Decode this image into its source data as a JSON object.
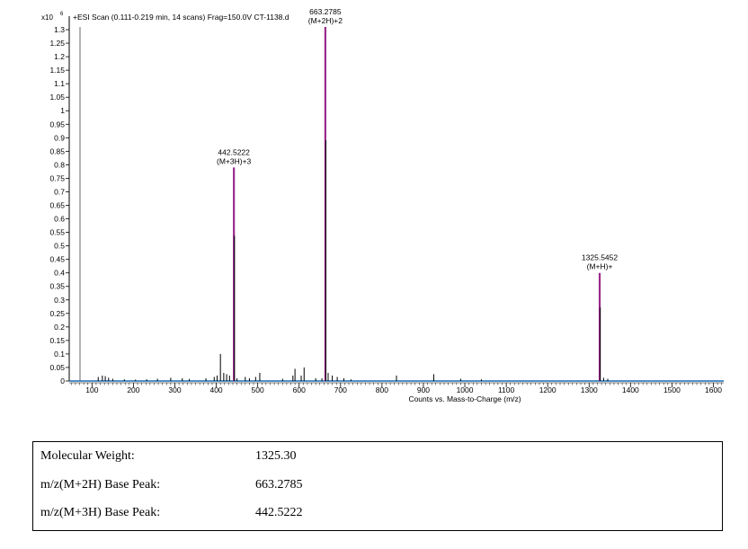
{
  "chart_data": {
    "type": "line",
    "title": "+ESI Scan (0.111-0.219 min, 14 scans) Frag=150.0V CT-1138.d",
    "y_multiplier": "x10",
    "y_multiplier_exp": "6",
    "xlabel": "Counts vs. Mass-to-Charge (m/z)",
    "ylabel": "",
    "xlim": [
      45,
      1625
    ],
    "ylim": [
      0,
      1.33
    ],
    "x_ticks": [
      100,
      200,
      300,
      400,
      500,
      600,
      700,
      800,
      900,
      1000,
      1100,
      1200,
      1300,
      1400,
      1500,
      1600
    ],
    "y_ticks": [
      0,
      0.05,
      0.1,
      0.15,
      0.2,
      0.25,
      0.3,
      0.35,
      0.4,
      0.45,
      0.5,
      0.55,
      0.6,
      0.65,
      0.7,
      0.75,
      0.8,
      0.85,
      0.9,
      0.95,
      1,
      1.05,
      1.1,
      1.15,
      1.2,
      1.25,
      1.3
    ],
    "y_tick_labels": [
      "0",
      "0.05",
      "0.1",
      "0.15",
      "0.2",
      "0.25",
      "0.3",
      "0.35",
      "0.4",
      "0.45",
      "0.5",
      "0.55",
      "0.6",
      "0.65",
      "0.7",
      "0.75",
      "0.8",
      "0.85",
      "0.9",
      "0.95",
      "1",
      "1.05",
      "1.1",
      "1.15",
      "1.2",
      "1.25",
      "1.3"
    ],
    "grid": false,
    "highlight_color": "#9b2a8c",
    "baseline_color": "#1a6fb5",
    "major_peaks": [
      {
        "mz": 442.5222,
        "intensity": 0.79,
        "label": "442.5222",
        "annotation": "(M+3H)+3"
      },
      {
        "mz": 663.2785,
        "intensity": 1.31,
        "label": "663.2785",
        "annotation": "(M+2H)+2"
      },
      {
        "mz": 1325.5452,
        "intensity": 0.4,
        "label": "1325.5452",
        "annotation": "(M+H)+"
      }
    ],
    "minor_peaks": [
      {
        "mz": 115,
        "intensity": 0.015
      },
      {
        "mz": 125,
        "intensity": 0.02
      },
      {
        "mz": 132,
        "intensity": 0.018
      },
      {
        "mz": 140,
        "intensity": 0.012
      },
      {
        "mz": 150,
        "intensity": 0.008
      },
      {
        "mz": 178,
        "intensity": 0.006
      },
      {
        "mz": 205,
        "intensity": 0.005
      },
      {
        "mz": 232,
        "intensity": 0.006
      },
      {
        "mz": 258,
        "intensity": 0.008
      },
      {
        "mz": 290,
        "intensity": 0.012
      },
      {
        "mz": 318,
        "intensity": 0.01
      },
      {
        "mz": 335,
        "intensity": 0.008
      },
      {
        "mz": 375,
        "intensity": 0.01
      },
      {
        "mz": 395,
        "intensity": 0.015
      },
      {
        "mz": 402,
        "intensity": 0.02
      },
      {
        "mz": 410,
        "intensity": 0.1
      },
      {
        "mz": 418,
        "intensity": 0.03
      },
      {
        "mz": 425,
        "intensity": 0.025
      },
      {
        "mz": 432,
        "intensity": 0.02
      },
      {
        "mz": 450,
        "intensity": 0.01
      },
      {
        "mz": 470,
        "intensity": 0.015
      },
      {
        "mz": 480,
        "intensity": 0.01
      },
      {
        "mz": 495,
        "intensity": 0.015
      },
      {
        "mz": 505,
        "intensity": 0.03
      },
      {
        "mz": 560,
        "intensity": 0.008
      },
      {
        "mz": 585,
        "intensity": 0.02
      },
      {
        "mz": 590,
        "intensity": 0.045
      },
      {
        "mz": 605,
        "intensity": 0.02
      },
      {
        "mz": 612,
        "intensity": 0.05
      },
      {
        "mz": 640,
        "intensity": 0.01
      },
      {
        "mz": 655,
        "intensity": 0.01
      },
      {
        "mz": 670,
        "intensity": 0.03
      },
      {
        "mz": 680,
        "intensity": 0.02
      },
      {
        "mz": 692,
        "intensity": 0.015
      },
      {
        "mz": 708,
        "intensity": 0.01
      },
      {
        "mz": 725,
        "intensity": 0.006
      },
      {
        "mz": 835,
        "intensity": 0.02
      },
      {
        "mz": 925,
        "intensity": 0.025
      },
      {
        "mz": 990,
        "intensity": 0.008
      },
      {
        "mz": 1040,
        "intensity": 0.006
      },
      {
        "mz": 1335,
        "intensity": 0.012
      },
      {
        "mz": 1345,
        "intensity": 0.008
      }
    ]
  },
  "results": [
    {
      "label": "Molecular Weight:",
      "value": "1325.30"
    },
    {
      "label": "m/z(M+2H) Base Peak:",
      "value": "663.2785"
    },
    {
      "label": "m/z(M+3H) Base Peak:",
      "value": "442.5222"
    }
  ]
}
